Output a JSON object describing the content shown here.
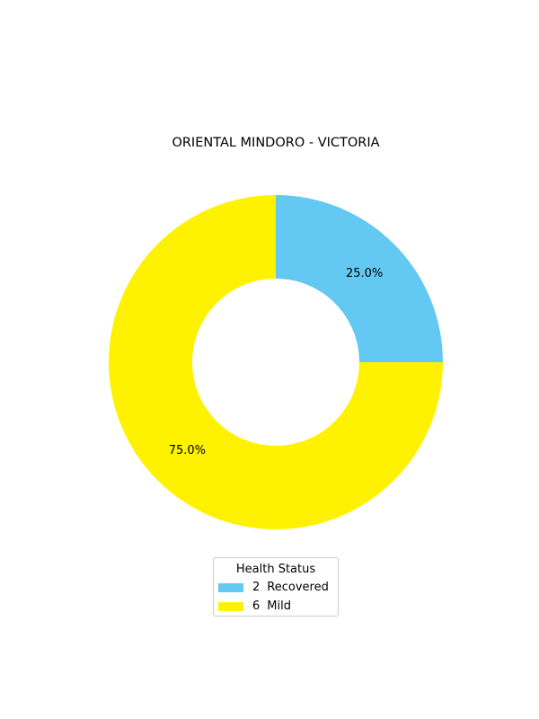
{
  "chart_data": {
    "type": "pie",
    "title": "ORIENTAL MINDORO - VICTORIA",
    "slices": [
      {
        "value": 2,
        "label": "Recovered",
        "percent_label": "25.0%",
        "color": "#63c8f2"
      },
      {
        "value": 6,
        "label": "Mild",
        "percent_label": "75.0%",
        "color": "#fff200"
      }
    ],
    "donut": true,
    "legend": {
      "title": "Health Status",
      "placement": "bottom-center",
      "entries": [
        {
          "value": "2",
          "label": "Recovered",
          "color": "#63c8f2"
        },
        {
          "value": "6",
          "label": "Mild",
          "color": "#fff200"
        }
      ]
    }
  }
}
